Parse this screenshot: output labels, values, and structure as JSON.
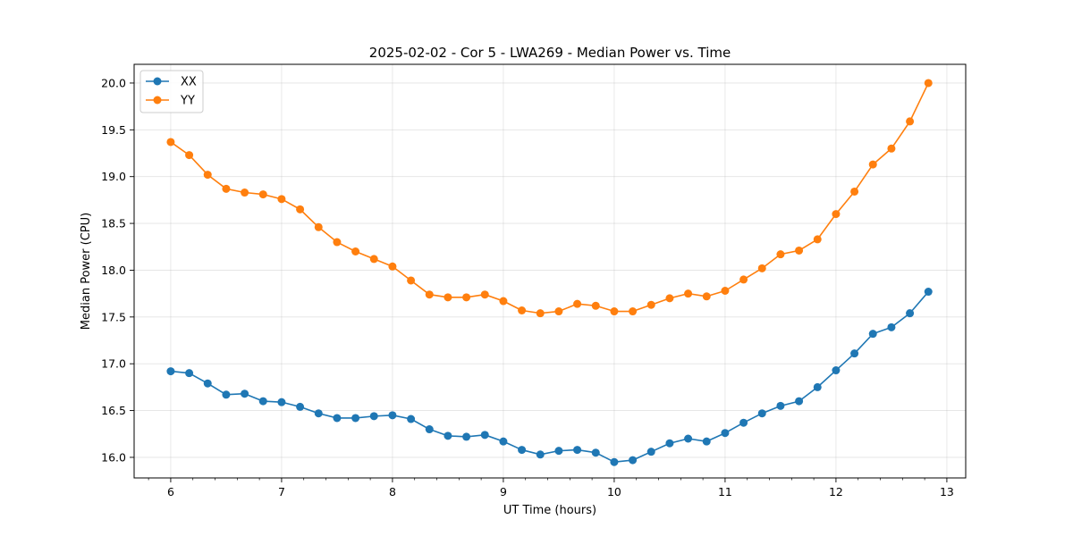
{
  "chart_data": {
    "type": "line",
    "title": "2025-02-02 - Cor 5 - LWA269 - Median Power vs. Time",
    "xlabel": "UT Time (hours)",
    "ylabel": "Median Power (CPU)",
    "xlim": [
      5.67,
      13.17
    ],
    "ylim": [
      15.78,
      20.2
    ],
    "xticks": [
      6,
      7,
      8,
      9,
      10,
      11,
      12,
      13
    ],
    "xtick_labels": [
      "6",
      "7",
      "8",
      "9",
      "10",
      "11",
      "12",
      "13"
    ],
    "xminor_step": 0.2,
    "yticks": [
      16.0,
      16.5,
      17.0,
      17.5,
      18.0,
      18.5,
      19.0,
      19.5,
      20.0
    ],
    "ytick_labels": [
      "16.0",
      "16.5",
      "17.0",
      "17.5",
      "18.0",
      "18.5",
      "19.0",
      "19.5",
      "20.0"
    ],
    "grid": true,
    "legend_position": "top-left",
    "x": [
      6.0,
      6.1667,
      6.3333,
      6.5,
      6.6667,
      6.8333,
      7.0,
      7.1667,
      7.3333,
      7.5,
      7.6667,
      7.8333,
      8.0,
      8.1667,
      8.3333,
      8.5,
      8.6667,
      8.8333,
      9.0,
      9.1667,
      9.3333,
      9.5,
      9.6667,
      9.8333,
      10.0,
      10.1667,
      10.3333,
      10.5,
      10.6667,
      10.8333,
      11.0,
      11.1667,
      11.3333,
      11.5,
      11.6667,
      11.8333,
      12.0,
      12.1667,
      12.3333,
      12.5,
      12.6667,
      12.8333
    ],
    "series": [
      {
        "name": "XX",
        "color": "#1f77b4",
        "values": [
          16.92,
          16.9,
          16.79,
          16.67,
          16.68,
          16.6,
          16.59,
          16.54,
          16.47,
          16.42,
          16.42,
          16.44,
          16.45,
          16.41,
          16.3,
          16.23,
          16.22,
          16.24,
          16.17,
          16.08,
          16.03,
          16.07,
          16.08,
          16.05,
          15.95,
          15.97,
          16.06,
          16.15,
          16.2,
          16.17,
          16.26,
          16.37,
          16.47,
          16.55,
          16.6,
          16.75,
          16.93,
          17.11,
          17.32,
          17.39,
          17.54,
          17.77
        ]
      },
      {
        "name": "YY",
        "color": "#ff7f0e",
        "values": [
          19.37,
          19.23,
          19.02,
          18.87,
          18.83,
          18.81,
          18.76,
          18.65,
          18.46,
          18.3,
          18.2,
          18.12,
          18.04,
          17.89,
          17.74,
          17.71,
          17.71,
          17.74,
          17.67,
          17.57,
          17.54,
          17.56,
          17.64,
          17.62,
          17.56,
          17.56,
          17.63,
          17.7,
          17.75,
          17.72,
          17.78,
          17.9,
          18.02,
          18.17,
          18.21,
          18.33,
          18.6,
          18.84,
          19.13,
          19.3,
          19.59,
          20.0
        ]
      }
    ]
  }
}
